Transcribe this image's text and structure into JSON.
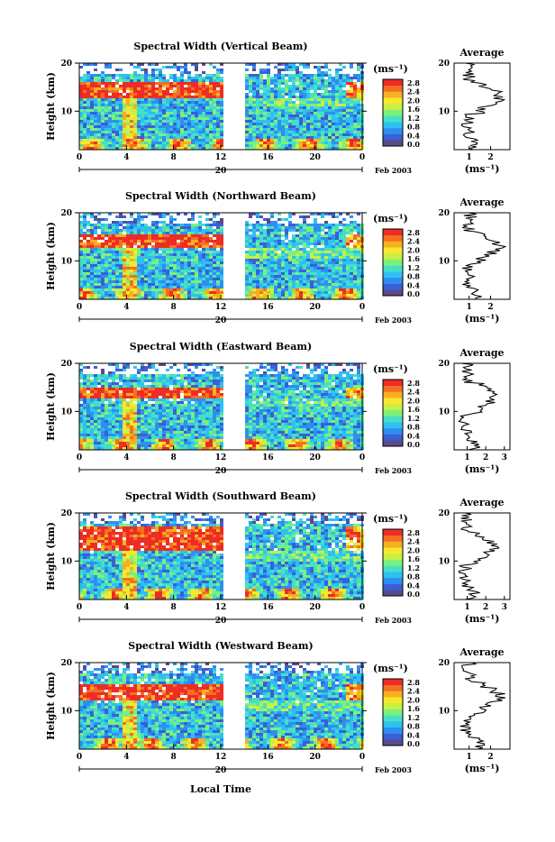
{
  "figure": {
    "xlabel": "Local Time",
    "date_day": "20",
    "date_month": "Feb 2003",
    "unit_label": "(ms⁻¹)",
    "avg_title": "Average",
    "avg_xlabel": "(ms⁻¹)",
    "ylabel": "Height (km)"
  },
  "colorbar": {
    "ticks": [
      "2.8",
      "2.4",
      "2.0",
      "1.6",
      "1.2",
      "0.8",
      "0.4",
      "0.0"
    ],
    "colors": [
      "#5a4a8a",
      "#3a5fd6",
      "#2f8ff0",
      "#2fc0f2",
      "#45e0c4",
      "#7cf07c",
      "#c8f045",
      "#f6e830",
      "#f6b020",
      "#f46f22",
      "#ee2c26"
    ]
  },
  "chart_data": [
    {
      "type": "heatmap",
      "title": "Spectral Width (Vertical Beam)",
      "x_ticks": [
        "0",
        "4",
        "8",
        "12",
        "16",
        "20",
        "0"
      ],
      "y_ticks": [
        "20",
        "10"
      ],
      "xlim": [
        0,
        24
      ],
      "ylim": [
        2,
        20
      ],
      "data_gap_hours": [
        12,
        14
      ],
      "avg_profile": {
        "type": "line",
        "xlabel": "(ms⁻¹)",
        "x_ticks": [
          "1",
          "2"
        ],
        "xlim": [
          0.3,
          2.9
        ],
        "y_ticks": [
          "20",
          "10"
        ]
      }
    },
    {
      "type": "heatmap",
      "title": "Spectral Width (Northward Beam)",
      "x_ticks": [
        "0",
        "4",
        "8",
        "12",
        "16",
        "20",
        "0"
      ],
      "y_ticks": [
        "20",
        "10"
      ],
      "xlim": [
        0,
        24
      ],
      "ylim": [
        2,
        20
      ],
      "data_gap_hours": [
        12,
        14
      ],
      "avg_profile": {
        "type": "line",
        "xlabel": "(ms⁻¹)",
        "x_ticks": [
          "1",
          "2"
        ],
        "xlim": [
          0.3,
          2.9
        ],
        "y_ticks": [
          "20",
          "10"
        ]
      }
    },
    {
      "type": "heatmap",
      "title": "Spectral Width (Eastward Beam)",
      "x_ticks": [
        "0",
        "4",
        "8",
        "12",
        "16",
        "20",
        "0"
      ],
      "y_ticks": [
        "20",
        "10"
      ],
      "xlim": [
        0,
        24
      ],
      "ylim": [
        2,
        20
      ],
      "data_gap_hours": [
        12,
        14
      ],
      "avg_profile": {
        "type": "line",
        "xlabel": "(ms⁻¹)",
        "x_ticks": [
          "1",
          "2",
          "3"
        ],
        "xlim": [
          0.3,
          3.3
        ],
        "y_ticks": [
          "20",
          "10"
        ]
      }
    },
    {
      "type": "heatmap",
      "title": "Spectral Width (Southward Beam)",
      "x_ticks": [
        "0",
        "4",
        "8",
        "12",
        "16",
        "20",
        "0"
      ],
      "y_ticks": [
        "20",
        "10"
      ],
      "xlim": [
        0,
        24
      ],
      "ylim": [
        2,
        20
      ],
      "data_gap_hours": [
        12,
        14
      ],
      "avg_profile": {
        "type": "line",
        "xlabel": "(ms⁻¹)",
        "x_ticks": [
          "1",
          "2",
          "3"
        ],
        "xlim": [
          0.3,
          3.3
        ],
        "y_ticks": [
          "20",
          "10"
        ]
      }
    },
    {
      "type": "heatmap",
      "title": "Spectral Width (Westward Beam)",
      "x_ticks": [
        "0",
        "4",
        "8",
        "12",
        "16",
        "20",
        "0"
      ],
      "y_ticks": [
        "20",
        "10"
      ],
      "xlim": [
        0,
        24
      ],
      "ylim": [
        2,
        20
      ],
      "data_gap_hours": [
        12,
        14
      ],
      "avg_profile": {
        "type": "line",
        "xlabel": "(ms⁻¹)",
        "x_ticks": [
          "1",
          "2"
        ],
        "xlim": [
          0.3,
          2.9
        ],
        "y_ticks": [
          "20",
          "10"
        ]
      }
    }
  ]
}
